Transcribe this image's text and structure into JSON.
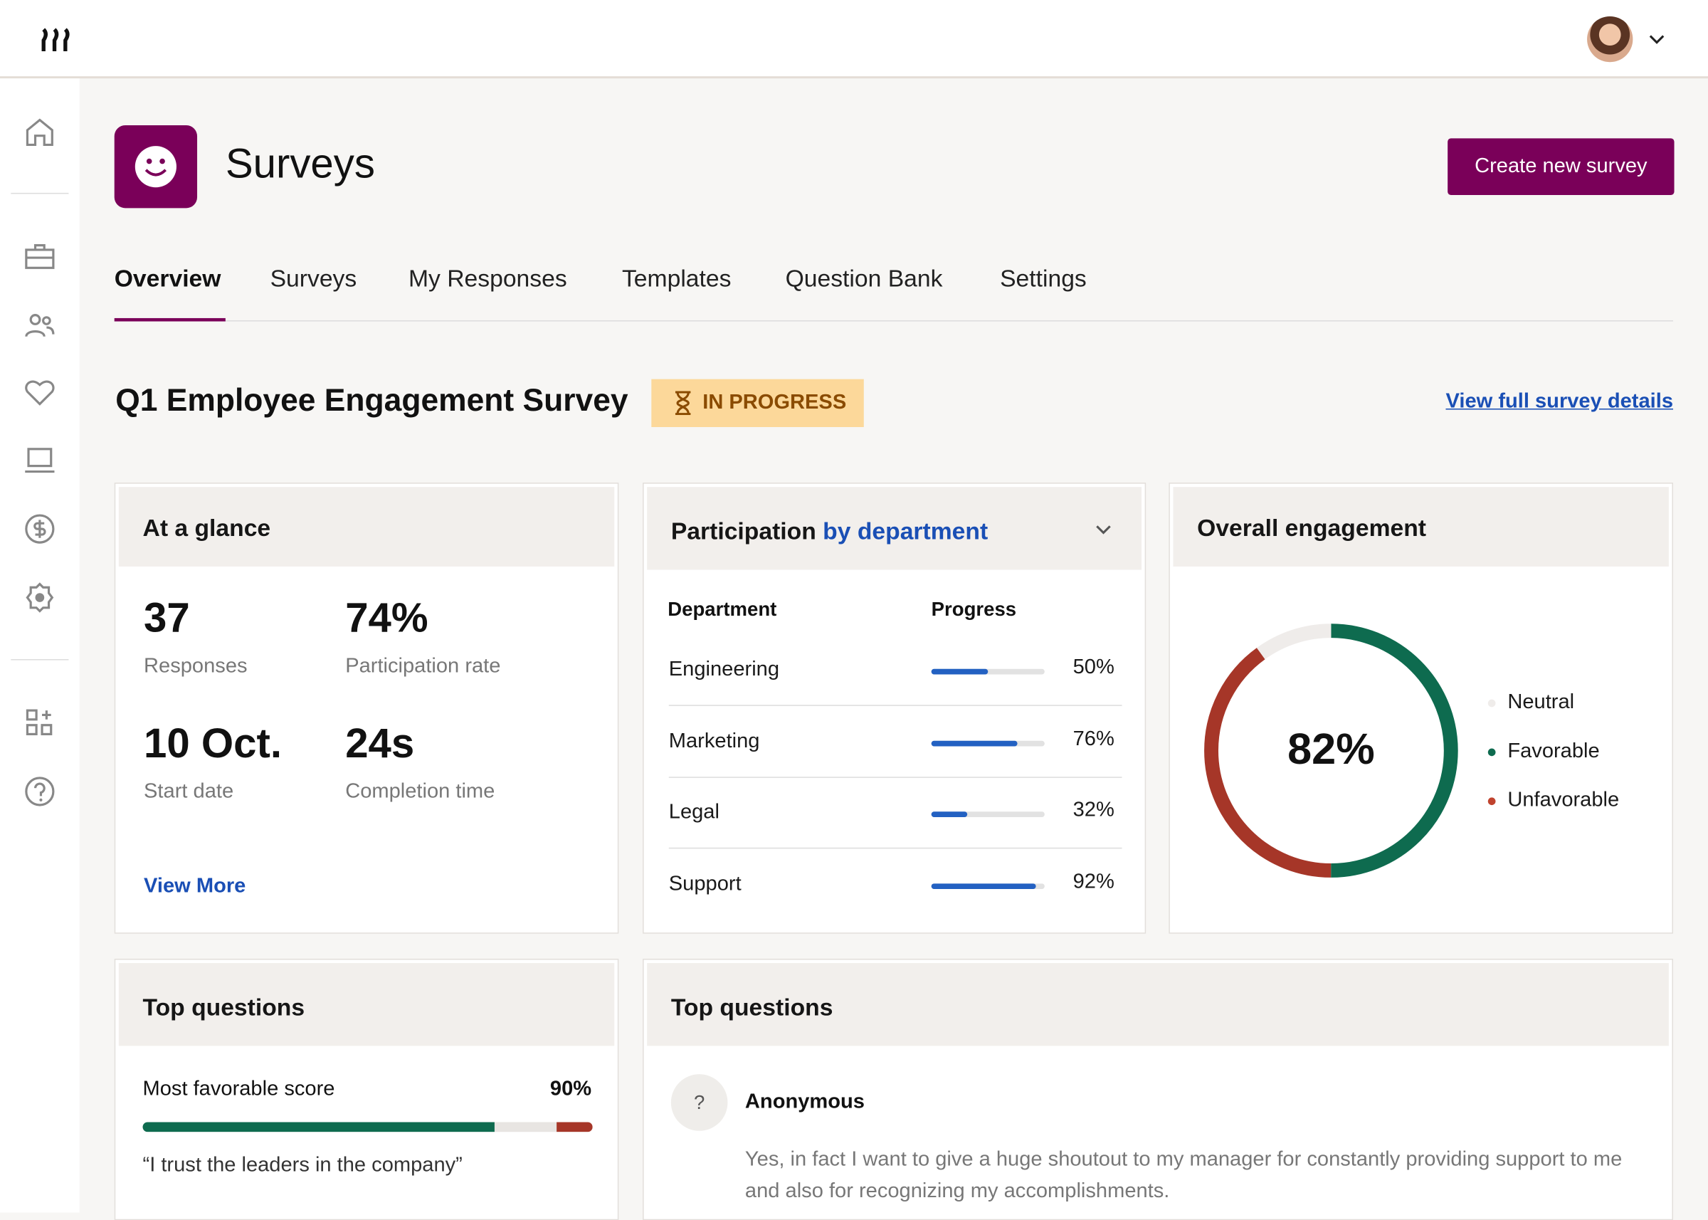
{
  "app": {
    "logo": "RRR",
    "user_avatar": "avatar"
  },
  "header": {
    "title": "Surveys",
    "create_button": "Create new survey",
    "icon": "smiley-icon"
  },
  "sidebar": {
    "items": [
      "home",
      "briefcase",
      "people",
      "heart",
      "laptop",
      "dollar",
      "settings",
      "apps",
      "help"
    ]
  },
  "tabs": [
    {
      "label": "Overview",
      "active": true
    },
    {
      "label": "Surveys"
    },
    {
      "label": "My Responses"
    },
    {
      "label": "Templates"
    },
    {
      "label": "Question Bank"
    },
    {
      "label": "Settings"
    }
  ],
  "survey": {
    "title": "Q1 Employee Engagement Survey",
    "status": "IN PROGRESS",
    "details_link": "View full survey details"
  },
  "glance": {
    "title": "At a glance",
    "stats": [
      {
        "value": "37",
        "label": "Responses"
      },
      {
        "value": "74%",
        "label": "Participation rate"
      },
      {
        "value": "10 Oct.",
        "label": "Start date"
      },
      {
        "value": "24s",
        "label": "Completion time"
      }
    ],
    "view_more": "View More"
  },
  "participation": {
    "title": "Participation",
    "title_accent": "by department",
    "col_dept": "Department",
    "col_progress": "Progress",
    "rows": [
      {
        "dept": "Engineering",
        "pct": "50%",
        "value": 50
      },
      {
        "dept": "Marketing",
        "pct": "76%",
        "value": 76
      },
      {
        "dept": "Legal",
        "pct": "32%",
        "value": 32
      },
      {
        "dept": "Support",
        "pct": "92%",
        "value": 92
      }
    ]
  },
  "engagement": {
    "title": "Overall engagement",
    "center": "82%",
    "segments": [
      {
        "name": "Favorable",
        "value": 50,
        "color": "#0e6b4f"
      },
      {
        "name": "Unfavorable",
        "value": 40,
        "color": "#a63628"
      },
      {
        "name": "Neutral",
        "value": 10,
        "color": "#efecea"
      }
    ],
    "legend": [
      {
        "name": "Neutral",
        "color": "#efecea"
      },
      {
        "name": "Favorable",
        "color": "#0e6b4f"
      },
      {
        "name": "Unfavorable",
        "color": "#c0432e"
      }
    ]
  },
  "top_questions_1": {
    "title": "Top questions",
    "label": "Most favorable score",
    "pct": "90%",
    "favorable": 90,
    "quote": "“I trust the leaders in the company”"
  },
  "top_questions_2": {
    "title": "Top questions",
    "avatar": "?",
    "author": "Anonymous",
    "text": "Yes, in fact I want to give a huge shoutout to my manager for constantly providing support to me and also for recognizing my accomplishments."
  }
}
